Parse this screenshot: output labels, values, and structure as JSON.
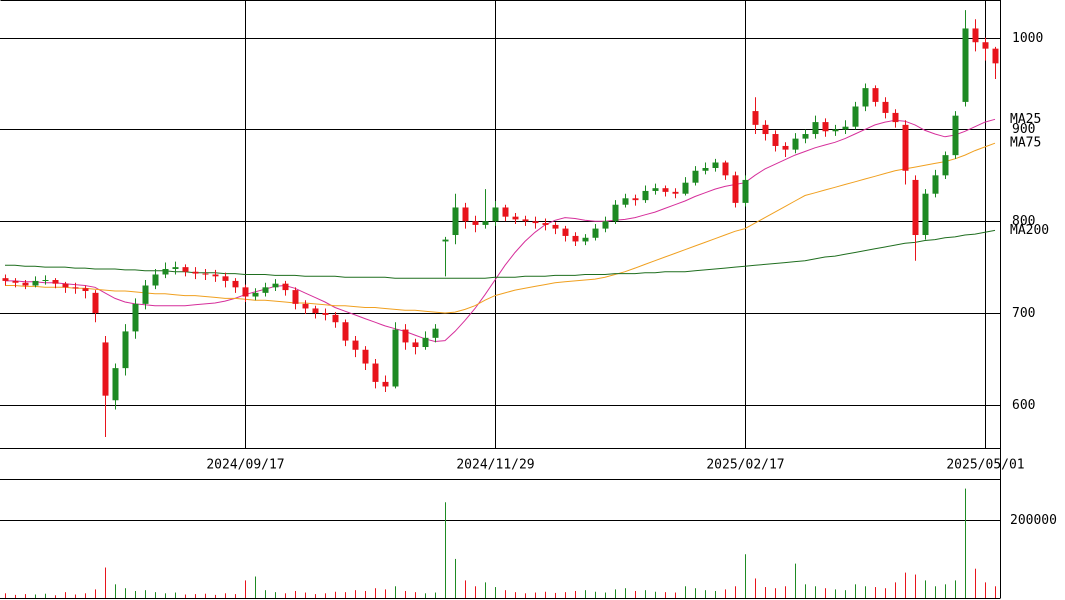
{
  "chart_data": [
    {
      "type": "candlestick",
      "categories": [
        null,
        null,
        null,
        null,
        null,
        null,
        null,
        null,
        null,
        null,
        null,
        null,
        null,
        null,
        null,
        null,
        null,
        null,
        null,
        null,
        null,
        null,
        null,
        null,
        "2024/09/17",
        null,
        null,
        null,
        null,
        null,
        null,
        null,
        null,
        null,
        null,
        null,
        null,
        null,
        null,
        null,
        null,
        null,
        null,
        null,
        null,
        null,
        null,
        null,
        null,
        "2024/11/29",
        null,
        null,
        null,
        null,
        null,
        null,
        null,
        null,
        null,
        null,
        null,
        null,
        null,
        null,
        null,
        null,
        null,
        null,
        null,
        null,
        null,
        null,
        null,
        null,
        "2025/02/17",
        null,
        null,
        null,
        null,
        null,
        null,
        null,
        null,
        null,
        null,
        null,
        null,
        null,
        null,
        null,
        null,
        null,
        null,
        null,
        null,
        null,
        null,
        null,
        "2025/05/01",
        null
      ],
      "open": [
        738,
        735,
        733,
        730,
        735,
        736,
        732,
        728,
        727,
        722,
        668,
        605,
        640,
        680,
        710,
        730,
        742,
        748,
        750,
        745,
        743,
        742,
        740,
        735,
        728,
        718,
        722,
        728,
        732,
        725,
        710,
        705,
        700,
        698,
        690,
        670,
        660,
        645,
        625,
        620,
        682,
        668,
        663,
        673,
        778,
        785,
        815,
        800,
        796,
        800,
        815,
        805,
        802,
        800,
        798,
        796,
        792,
        784,
        778,
        782,
        792,
        800,
        818,
        825,
        823,
        833,
        836,
        832,
        830,
        842,
        855,
        858,
        864,
        850,
        820,
        920,
        905,
        895,
        882,
        878,
        890,
        895,
        908,
        898,
        900,
        903,
        925,
        945,
        930,
        918,
        905,
        845,
        785,
        830,
        850,
        872,
        930,
        1010,
        995,
        988
      ],
      "high": [
        742,
        738,
        736,
        740,
        741,
        738,
        734,
        733,
        730,
        725,
        675,
        645,
        688,
        716,
        736,
        748,
        755,
        756,
        753,
        750,
        748,
        747,
        744,
        738,
        731,
        727,
        733,
        737,
        735,
        728,
        714,
        708,
        705,
        701,
        693,
        675,
        664,
        650,
        632,
        690,
        688,
        672,
        680,
        688,
        783,
        830,
        820,
        806,
        835,
        822,
        818,
        809,
        806,
        805,
        803,
        799,
        795,
        788,
        786,
        797,
        805,
        823,
        830,
        829,
        839,
        841,
        839,
        836,
        848,
        860,
        864,
        868,
        866,
        854,
        850,
        935,
        910,
        899,
        886,
        896,
        900,
        915,
        912,
        905,
        910,
        930,
        950,
        948,
        935,
        922,
        910,
        850,
        835,
        856,
        876,
        920,
        1030,
        1020,
        1000,
        990
      ],
      "low": [
        730,
        728,
        726,
        728,
        731,
        727,
        722,
        721,
        716,
        690,
        565,
        595,
        632,
        672,
        704,
        726,
        738,
        742,
        740,
        737,
        736,
        734,
        728,
        722,
        712,
        714,
        718,
        724,
        719,
        704,
        699,
        694,
        692,
        684,
        664,
        652,
        638,
        618,
        614,
        618,
        660,
        655,
        660,
        668,
        740,
        775,
        792,
        788,
        792,
        795,
        800,
        797,
        795,
        792,
        790,
        786,
        778,
        773,
        774,
        779,
        788,
        797,
        815,
        817,
        820,
        829,
        827,
        825,
        828,
        839,
        851,
        854,
        845,
        815,
        816,
        895,
        888,
        876,
        870,
        874,
        885,
        890,
        892,
        893,
        895,
        900,
        920,
        925,
        912,
        902,
        840,
        757,
        780,
        826,
        846,
        868,
        925,
        985,
        975,
        955
      ],
      "close": [
        735,
        733,
        730,
        735,
        736,
        732,
        728,
        727,
        724,
        700,
        610,
        640,
        680,
        710,
        730,
        742,
        748,
        750,
        745,
        743,
        742,
        740,
        735,
        728,
        718,
        722,
        728,
        732,
        725,
        710,
        705,
        700,
        698,
        690,
        670,
        660,
        645,
        625,
        620,
        682,
        668,
        663,
        673,
        683,
        780,
        815,
        800,
        796,
        800,
        815,
        805,
        802,
        800,
        798,
        796,
        792,
        784,
        778,
        782,
        792,
        800,
        818,
        825,
        823,
        833,
        836,
        832,
        830,
        842,
        855,
        858,
        864,
        850,
        820,
        845,
        905,
        895,
        882,
        878,
        890,
        895,
        908,
        898,
        900,
        903,
        925,
        945,
        930,
        918,
        908,
        855,
        785,
        830,
        850,
        872,
        915,
        1010,
        995,
        988,
        972
      ],
      "up_color": "#1e8a23",
      "down_color": "#e8141c",
      "series": [
        {
          "name": "MA25",
          "color": "#d62f9b",
          "values": [
            735,
            735,
            734,
            734,
            733,
            733,
            732,
            731,
            730,
            728,
            722,
            716,
            712,
            710,
            709,
            708,
            708,
            708,
            708,
            709,
            710,
            711,
            713,
            716,
            720,
            723,
            726,
            729,
            730,
            727,
            722,
            717,
            712,
            706,
            702,
            698,
            694,
            690,
            686,
            683,
            680,
            676,
            672,
            669,
            670,
            680,
            692,
            705,
            720,
            736,
            752,
            766,
            778,
            788,
            796,
            801,
            804,
            803,
            801,
            800,
            800,
            801,
            802,
            804,
            807,
            810,
            814,
            818,
            822,
            827,
            831,
            835,
            838,
            840,
            842,
            850,
            857,
            862,
            867,
            872,
            876,
            880,
            883,
            886,
            890,
            895,
            900,
            905,
            908,
            910,
            909,
            905,
            899,
            895,
            892,
            894,
            898,
            903,
            908,
            911
          ]
        },
        {
          "name": "MA75",
          "color": "#f0a020",
          "values": [
            730,
            730,
            729,
            729,
            728,
            728,
            728,
            727,
            727,
            726,
            725,
            724,
            724,
            723,
            722,
            721,
            721,
            720,
            719,
            719,
            718,
            717,
            716,
            716,
            715,
            714,
            714,
            713,
            712,
            711,
            711,
            710,
            709,
            708,
            708,
            707,
            706,
            706,
            705,
            704,
            703,
            703,
            702,
            701,
            700,
            701,
            704,
            708,
            714,
            719,
            722,
            725,
            727,
            729,
            731,
            733,
            734,
            735,
            736,
            737,
            739,
            742,
            745,
            749,
            753,
            757,
            761,
            765,
            769,
            773,
            777,
            781,
            785,
            789,
            792,
            798,
            804,
            810,
            816,
            822,
            828,
            831,
            834,
            837,
            840,
            843,
            846,
            849,
            852,
            855,
            857,
            859,
            861,
            863,
            865,
            868,
            872,
            877,
            881,
            885
          ]
        },
        {
          "name": "MA200",
          "color": "#1f6e1f",
          "values": [
            752,
            752,
            751,
            751,
            750,
            750,
            750,
            749,
            749,
            748,
            748,
            748,
            747,
            747,
            746,
            746,
            746,
            745,
            745,
            744,
            744,
            744,
            743,
            743,
            742,
            742,
            742,
            741,
            741,
            741,
            740,
            740,
            740,
            740,
            739,
            739,
            739,
            739,
            739,
            738,
            738,
            738,
            738,
            738,
            738,
            738,
            738,
            738,
            738,
            739,
            739,
            739,
            740,
            740,
            740,
            741,
            741,
            741,
            742,
            742,
            742,
            743,
            743,
            743,
            744,
            744,
            745,
            745,
            745,
            746,
            747,
            748,
            749,
            750,
            751,
            752,
            753,
            754,
            755,
            756,
            757,
            759,
            761,
            762,
            764,
            766,
            768,
            770,
            772,
            774,
            776,
            777,
            779,
            780,
            782,
            783,
            785,
            786,
            788,
            790
          ]
        }
      ],
      "ylim": [
        553,
        1041
      ],
      "yticks": [
        600,
        700,
        800,
        900,
        1000
      ],
      "grid": true
    },
    {
      "type": "bar",
      "values": [
        12000,
        8000,
        10000,
        9000,
        11000,
        7000,
        15000,
        9000,
        12000,
        22000,
        78000,
        35000,
        25000,
        18000,
        20000,
        15000,
        12000,
        14000,
        9000,
        10000,
        11000,
        8000,
        12000,
        10000,
        45000,
        55000,
        20000,
        15000,
        12000,
        18000,
        14000,
        10000,
        12000,
        16000,
        15000,
        20000,
        18000,
        25000,
        22000,
        30000,
        18000,
        15000,
        12000,
        14000,
        245000,
        100000,
        45000,
        30000,
        40000,
        28000,
        20000,
        15000,
        12000,
        14000,
        16000,
        13000,
        15000,
        18000,
        20000,
        16000,
        14000,
        22000,
        25000,
        18000,
        20000,
        16000,
        15000,
        14000,
        30000,
        25000,
        20000,
        18000,
        22000,
        30000,
        112000,
        50000,
        28000,
        25000,
        30000,
        88000,
        35000,
        30000,
        25000,
        22000,
        20000,
        35000,
        30000,
        28000,
        25000,
        40000,
        65000,
        60000,
        45000,
        30000,
        35000,
        45000,
        280000,
        75000,
        40000,
        30000
      ],
      "ylim": [
        0,
        302000
      ],
      "yticks": [
        200000
      ],
      "grid": true
    }
  ]
}
